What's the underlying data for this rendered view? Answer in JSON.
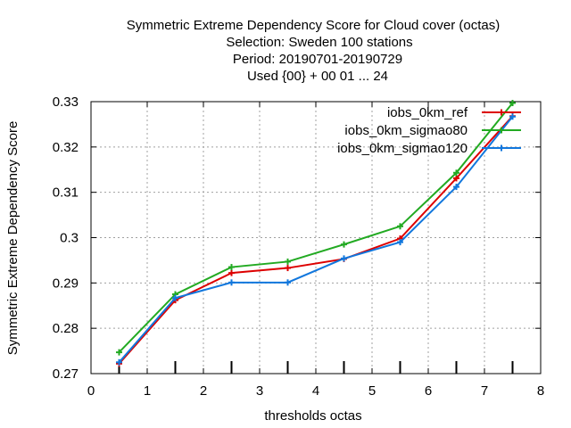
{
  "chart_data": {
    "type": "line",
    "title_lines": [
      "Symmetric Extreme Dependency Score  for Cloud cover (octas)",
      "Selection: Sweden    100 stations",
      "Period: 20190701-20190729",
      "Used {00} + 00 01 ... 24"
    ],
    "xlabel": "thresholds octas",
    "ylabel": "Symmetric Extreme Dependency Score",
    "xlim": [
      0,
      8
    ],
    "ylim": [
      0.27,
      0.33
    ],
    "xticks": [
      "0",
      "1",
      "2",
      "3",
      "4",
      "5",
      "6",
      "7",
      "8"
    ],
    "yticks": [
      "0.27",
      "0.28",
      "0.29",
      "0.3",
      "0.31",
      "0.32",
      "0.33"
    ],
    "grid": true,
    "legend_position": "top-right",
    "x": [
      0.5,
      1.5,
      2.5,
      3.5,
      4.5,
      5.5,
      6.5,
      7.5
    ],
    "series": [
      {
        "name": "iobs_0km_ref",
        "color": "#dd0000",
        "marker": "plus",
        "values": [
          0.2722,
          0.2862,
          0.2922,
          0.2933,
          0.2953,
          0.2998,
          0.3131,
          0.3268
        ]
      },
      {
        "name": "iobs_0km_sigmao80",
        "color": "#22aa22",
        "marker": "plus",
        "values": [
          0.2747,
          0.2875,
          0.2935,
          0.2947,
          0.2985,
          0.3025,
          0.3143,
          0.3297
        ]
      },
      {
        "name": "iobs_0km_sigmao120",
        "color": "#1177dd",
        "marker": "plus",
        "values": [
          0.2725,
          0.2867,
          0.2901,
          0.2901,
          0.2954,
          0.299,
          0.3112,
          0.3267
        ]
      }
    ],
    "threshold_marks_x": [
      0.5,
      1.5,
      2.5,
      3.5,
      4.5,
      5.5,
      6.5,
      7.5
    ]
  }
}
